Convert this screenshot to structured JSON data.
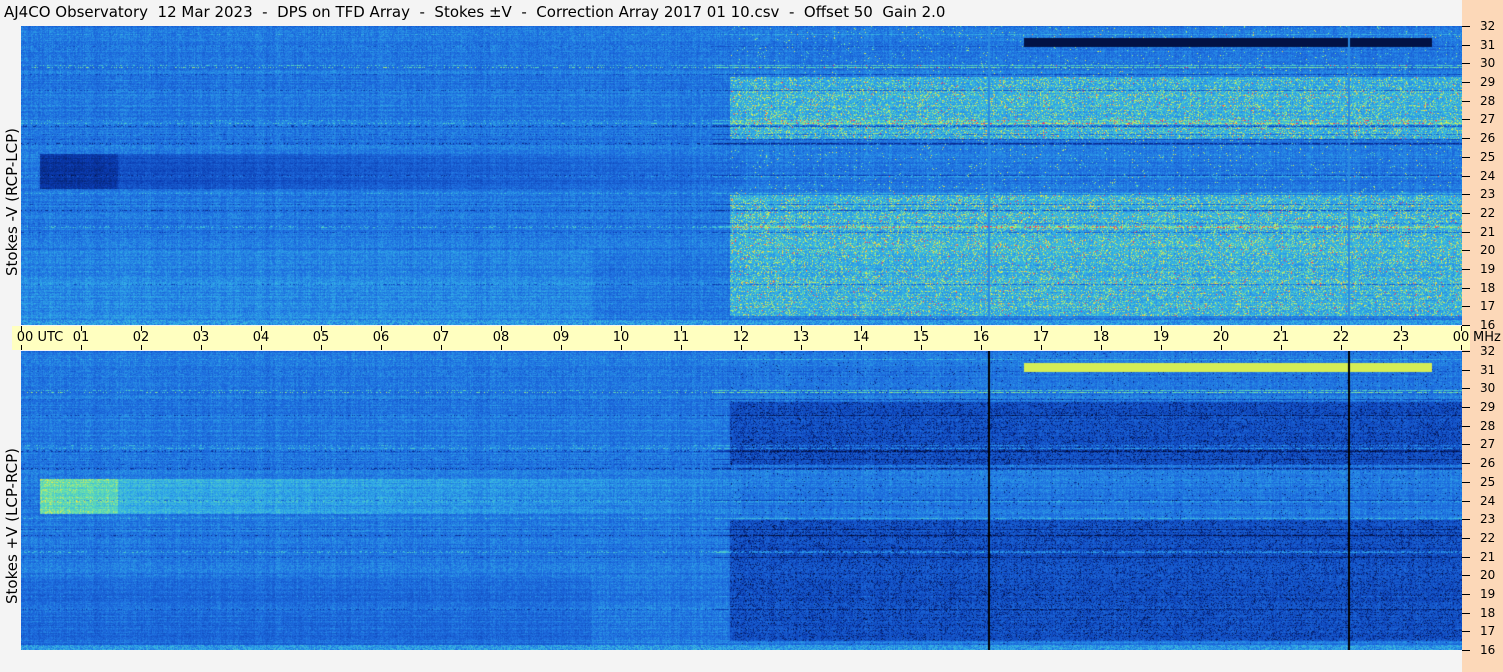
{
  "title": "AJ4CO Observatory  12 Mar 2023  -  DPS on TFD Array  -  Stokes ±V  -  Correction Array 2017 01 10.csv  -  Offset 50  Gain 2.0",
  "chart_data": [
    {
      "type": "heatmap",
      "panel": "top",
      "ylabel": "Stokes -V (RCP-LCP)",
      "x_ticks": [
        "00 UTC",
        "01",
        "02",
        "03",
        "04",
        "05",
        "06",
        "07",
        "08",
        "09",
        "10",
        "11",
        "12",
        "13",
        "14",
        "15",
        "16",
        "17",
        "18",
        "19",
        "20",
        "21",
        "22",
        "23",
        "00"
      ],
      "xlim_hours": [
        0,
        24
      ],
      "y_unit": "MHz",
      "y_ticks": [
        "16",
        "17",
        "18",
        "19",
        "20",
        "21",
        "22",
        "23",
        "24",
        "25",
        "26",
        "27",
        "28",
        "29",
        "30",
        "31",
        "32"
      ],
      "ylim_mhz": [
        16,
        32
      ],
      "colormap": [
        "#000a30",
        "#0a3ab0",
        "#1e6ee0",
        "#32aee8",
        "#64e0b0",
        "#f0f040",
        "#ff3060"
      ]
    },
    {
      "type": "heatmap",
      "panel": "bottom",
      "ylabel": "Stokes +V (LCP-RCP)",
      "x_ticks": [
        "00 UTC",
        "01",
        "02",
        "03",
        "04",
        "05",
        "06",
        "07",
        "08",
        "09",
        "10",
        "11",
        "12",
        "13",
        "14",
        "15",
        "16",
        "17",
        "18",
        "19",
        "20",
        "21",
        "22",
        "23",
        "00"
      ],
      "xlim_hours": [
        0,
        24
      ],
      "y_unit": "MHz",
      "y_ticks": [
        "16",
        "17",
        "18",
        "19",
        "20",
        "21",
        "22",
        "23",
        "24",
        "25",
        "26",
        "27",
        "28",
        "29",
        "30",
        "31",
        "32"
      ],
      "ylim_mhz": [
        16,
        32
      ]
    }
  ],
  "axis": {
    "time_unit": "UTC",
    "freq_unit": "MHz"
  },
  "colors": {
    "time_band": "#ffffc0",
    "right_strip": "#fcd8b8"
  }
}
